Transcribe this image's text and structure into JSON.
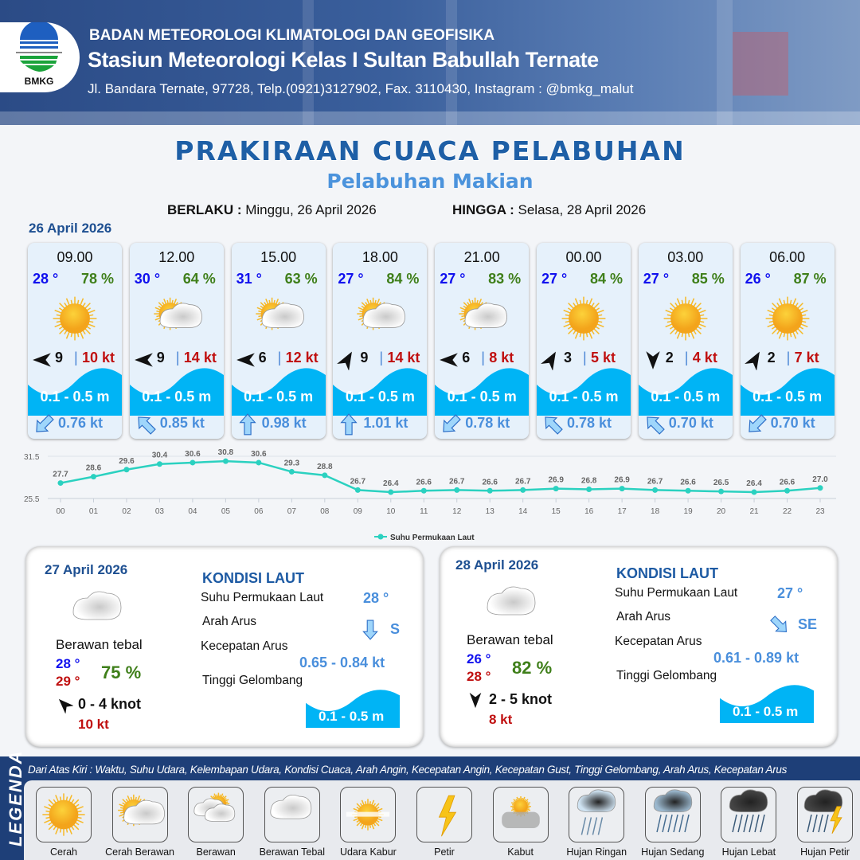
{
  "header": {
    "logo_text": "BMKG",
    "agency": "BADAN METEOROLOGI KLIMATOLOGI DAN GEOFISIKA",
    "station": "Stasiun Meteorologi Kelas I Sultan Babullah Ternate",
    "contact": "Jl. Bandara Ternate, 97728, Telp.(0921)3127902, Fax. 3110430, Instagram : @bmkg_malut"
  },
  "title": "PRAKIRAAN CUACA PELABUHAN",
  "subtitle": "Pelabuhan Makian",
  "validity": {
    "from_label": "BERLAKU :",
    "from": "Minggu, 26 April 2026",
    "to_label": "HINGGA :",
    "to": "Selasa, 28 April 2026"
  },
  "date_today": "26 April 2026",
  "colors": {
    "temp": "#1010ee",
    "humidity": "#3f7f1a",
    "gust": "#c01010",
    "wave": "#00b4f5",
    "current": "#4a8fdc",
    "chart_line": "#2bd1c0"
  },
  "forecasts": [
    {
      "time": "09.00",
      "temp": "28 °",
      "hum": "78 %",
      "icon": "cerah",
      "wind_heading_deg": 270,
      "wind": "9",
      "gust": "10 kt",
      "wave": "0.1 - 0.5 m",
      "current_heading_deg": 225,
      "current": "0.76 kt"
    },
    {
      "time": "12.00",
      "temp": "30 °",
      "hum": "64 %",
      "icon": "cerah-berawan",
      "wind_heading_deg": 270,
      "wind": "9",
      "gust": "14 kt",
      "wave": "0.1 - 0.5 m",
      "current_heading_deg": 315,
      "current": "0.85 kt"
    },
    {
      "time": "15.00",
      "temp": "31 °",
      "hum": "63 %",
      "icon": "cerah-berawan",
      "wind_heading_deg": 270,
      "wind": "6",
      "gust": "12 kt",
      "wave": "0.1 - 0.5 m",
      "current_heading_deg": 0,
      "current": "0.98 kt"
    },
    {
      "time": "18.00",
      "temp": "27 °",
      "hum": "84 %",
      "icon": "cerah-berawan",
      "wind_heading_deg": 30,
      "wind": "9",
      "gust": "14 kt",
      "wave": "0.1 - 0.5 m",
      "current_heading_deg": 0,
      "current": "1.01 kt"
    },
    {
      "time": "21.00",
      "temp": "27 °",
      "hum": "83 %",
      "icon": "cerah-berawan",
      "wind_heading_deg": 270,
      "wind": "6",
      "gust": "8 kt",
      "wave": "0.1 - 0.5 m",
      "current_heading_deg": 225,
      "current": "0.78 kt"
    },
    {
      "time": "00.00",
      "temp": "27 °",
      "hum": "84 %",
      "icon": "cerah",
      "wind_heading_deg": 30,
      "wind": "3",
      "gust": "5 kt",
      "wave": "0.1 - 0.5 m",
      "current_heading_deg": 315,
      "current": "0.78 kt"
    },
    {
      "time": "03.00",
      "temp": "27 °",
      "hum": "85 %",
      "icon": "cerah",
      "wind_heading_deg": 180,
      "wind": "2",
      "gust": "4 kt",
      "wave": "0.1 - 0.5 m",
      "current_heading_deg": 315,
      "current": "0.70 kt"
    },
    {
      "time": "06.00",
      "temp": "26 °",
      "hum": "87 %",
      "icon": "cerah",
      "wind_heading_deg": 30,
      "wind": "2",
      "gust": "7 kt",
      "wave": "0.1 - 0.5 m",
      "current_heading_deg": 225,
      "current": "0.70 kt"
    }
  ],
  "chart_data": {
    "type": "line",
    "categories": [
      "00",
      "01",
      "02",
      "03",
      "04",
      "05",
      "06",
      "07",
      "08",
      "09",
      "10",
      "11",
      "12",
      "13",
      "14",
      "15",
      "16",
      "17",
      "18",
      "19",
      "20",
      "21",
      "22",
      "23"
    ],
    "series": [
      {
        "name": "Suhu Permukaan Laut",
        "values": [
          27.7,
          28.6,
          29.6,
          30.4,
          30.6,
          30.8,
          30.6,
          29.3,
          28.8,
          26.7,
          26.4,
          26.6,
          26.7,
          26.6,
          26.7,
          26.9,
          26.8,
          26.9,
          26.7,
          26.6,
          26.5,
          26.4,
          26.6,
          27.0
        ]
      }
    ],
    "yticks": [
      "31.5",
      "25.5"
    ],
    "ylim": [
      25.5,
      31.5
    ],
    "legend_position": "bottom",
    "data_labels": true
  },
  "days": [
    {
      "date": "27 April 2026",
      "icon": "berawan-tebal",
      "condition": "Berawan tebal",
      "tmin": "28 °",
      "tmax": "29 °",
      "hum": "75 %",
      "wind_heading_deg": 315,
      "wind": "0  - 4 knot",
      "gust": "10 kt",
      "sea": {
        "title": "KONDISI LAUT",
        "sst_label": "Suhu Permukaan Laut",
        "sst": "28 °",
        "dir_label": "Arah Arus",
        "dir": "S",
        "dir_heading_deg": 180,
        "speed_label": "Kecepatan Arus",
        "speed": "0.65  - 0.84 kt",
        "wave_label": "Tinggi Gelombang",
        "wave": "0.1 - 0.5 m"
      }
    },
    {
      "date": "28 April 2026",
      "icon": "berawan-tebal",
      "condition": "Berawan tebal",
      "tmin": "26 °",
      "tmax": "28 °",
      "hum": "82 %",
      "wind_heading_deg": 180,
      "wind": "2  - 5 knot",
      "gust": "8 kt",
      "sea": {
        "title": "KONDISI LAUT",
        "sst_label": "Suhu Permukaan Laut",
        "sst": "27 °",
        "dir_label": "Arah Arus",
        "dir": "SE",
        "dir_heading_deg": 135,
        "speed_label": "Kecepatan Arus",
        "speed": "0.61  - 0.89 kt",
        "wave_label": "Tinggi Gelombang",
        "wave": "0.1 - 0.5 m"
      }
    }
  ],
  "legend": {
    "title": "LEGENDA",
    "note": "Dari Atas Kiri : Waktu, Suhu Udara, Kelembapan Udara, Kondisi Cuaca, Arah Angin, Kecepatan Angin, Kecepatan Gust, Tinggi Gelombang, Arah Arus, Kecepatan Arus",
    "items": [
      {
        "icon": "cerah",
        "label": "Cerah"
      },
      {
        "icon": "cerah-berawan",
        "label": "Cerah Berawan"
      },
      {
        "icon": "berawan",
        "label": "Berawan"
      },
      {
        "icon": "berawan-tebal",
        "label": "Berawan Tebal"
      },
      {
        "icon": "udara-kabur",
        "label": "Udara Kabur"
      },
      {
        "icon": "petir",
        "label": "Petir"
      },
      {
        "icon": "kabut",
        "label": "Kabut"
      },
      {
        "icon": "hujan-ringan",
        "label": "Hujan Ringan"
      },
      {
        "icon": "hujan-sedang",
        "label": "Hujan Sedang"
      },
      {
        "icon": "hujan-lebat",
        "label": "Hujan Lebat"
      },
      {
        "icon": "hujan-petir",
        "label": "Hujan Petir"
      }
    ]
  }
}
